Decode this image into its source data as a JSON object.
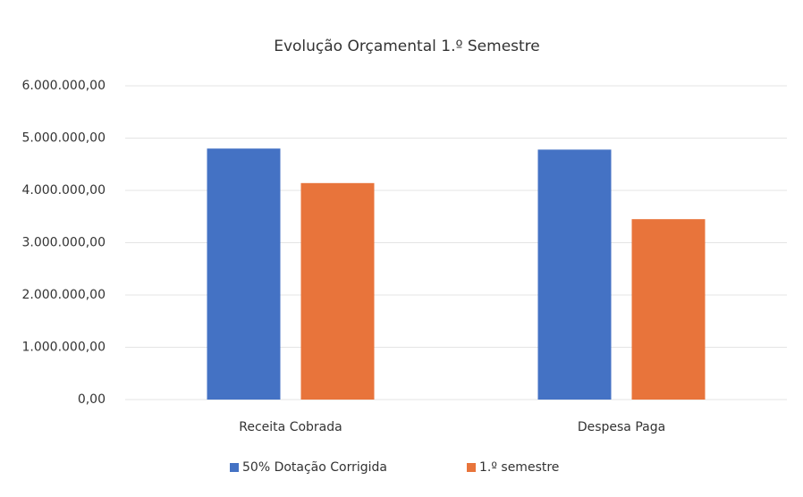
{
  "chart_data": {
    "type": "bar",
    "title": "Evolução Orçamental 1.º Semestre",
    "categories": [
      "Receita Cobrada",
      "Despesa Paga"
    ],
    "series": [
      {
        "name": "50% Dotação Corrigida",
        "color": "#4472c4",
        "values": [
          4800000,
          4780000
        ]
      },
      {
        "name": "1.º semestre",
        "color": "#e8743b",
        "values": [
          4140000,
          3450000
        ]
      }
    ],
    "ylim": [
      0,
      6000000
    ],
    "yticks": [
      {
        "value": 0,
        "label": "0,00"
      },
      {
        "value": 1000000,
        "label": "1.000.000,00"
      },
      {
        "value": 2000000,
        "label": "2.000.000,00"
      },
      {
        "value": 3000000,
        "label": "3.000.000,00"
      },
      {
        "value": 4000000,
        "label": "4.000.000,00"
      },
      {
        "value": 5000000,
        "label": "5.000.000,00"
      },
      {
        "value": 6000000,
        "label": "6.000.000,00"
      }
    ],
    "grid": true,
    "legend": "bottom"
  }
}
